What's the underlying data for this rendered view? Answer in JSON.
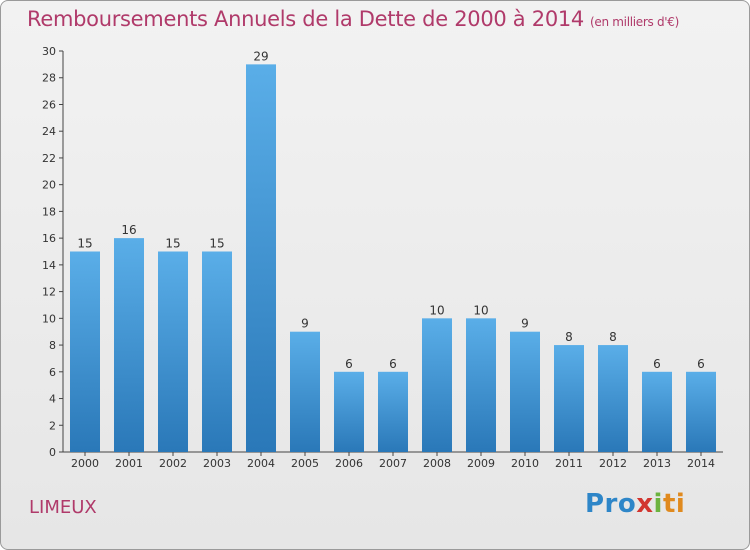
{
  "header": {
    "title": "Remboursements Annuels de la Dette de 2000 à 2014",
    "subtitle": "(en milliers d'€)"
  },
  "footer": {
    "commune": "LIMEUX",
    "logo": [
      "Pro",
      "x",
      "i",
      "ti"
    ]
  },
  "chart_data": {
    "type": "bar",
    "title": "Remboursements Annuels de la Dette de 2000 à 2014",
    "subtitle": "(en milliers d'€)",
    "categories": [
      "2000",
      "2001",
      "2002",
      "2003",
      "2004",
      "2005",
      "2006",
      "2007",
      "2008",
      "2009",
      "2010",
      "2011",
      "2012",
      "2013",
      "2014"
    ],
    "values": [
      15,
      16,
      15,
      15,
      29,
      9,
      6,
      6,
      10,
      10,
      9,
      8,
      8,
      6,
      6
    ],
    "ylim": [
      0,
      30
    ],
    "yticks": [
      0,
      2,
      4,
      6,
      8,
      10,
      12,
      14,
      16,
      18,
      20,
      22,
      24,
      26,
      28,
      30
    ],
    "grid": false,
    "colors": {
      "bar_top": "#5aaee8",
      "bar_bottom": "#2a78b8",
      "accent": "#b03a6a"
    }
  }
}
